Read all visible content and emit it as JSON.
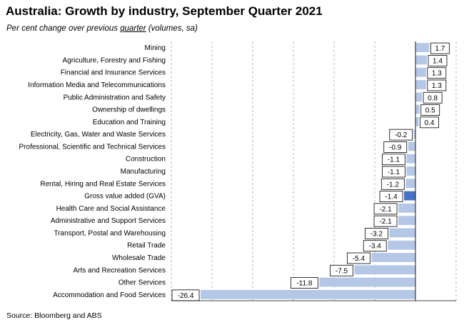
{
  "title": "Australia: Growth by industry, September Quarter 2021",
  "subtitle": {
    "before": "Per cent change over previous ",
    "underlined": "quarter",
    "after": " (volumes, sa)"
  },
  "source": "Source: Bloomberg and ABS",
  "colors": {
    "bar": "#b4c7e7",
    "highlight_bar": "#4472c4",
    "grid": "#a6a6a6",
    "axis": "#000000"
  },
  "chart_data": {
    "type": "bar",
    "orientation": "horizontal",
    "categories": [
      "Mining",
      "Agriculture, Forestry and Fishing",
      "Financial and Insurance Services",
      "Information Media and Telecommunications",
      "Public Administration and Safety",
      "Ownership of dwellings",
      "Education and Training",
      "Electricity, Gas, Water and Waste Services",
      "Professional, Scientific and Technical Services",
      "Construction",
      "Manufacturing",
      "Rental, Hiring and Real Estate Services",
      "Gross value added (GVA)",
      "Health Care and Social Assistance",
      "Administrative and Support Services",
      "Transport, Postal and Warehousing",
      "Retail Trade",
      "Wholesale Trade",
      "Arts and Recreation Services",
      "Other Services",
      "Accommodation and Food Services"
    ],
    "values": [
      1.7,
      1.4,
      1.3,
      1.3,
      0.8,
      0.5,
      0.4,
      -0.2,
      -0.9,
      -1.1,
      -1.1,
      -1.2,
      -1.4,
      -2.1,
      -2.1,
      -3.2,
      -3.4,
      -5.4,
      -7.5,
      -11.8,
      -26.4
    ],
    "value_labels": [
      "1.7",
      "1.4",
      "1.3",
      "1.3",
      "0.8",
      "0.5",
      "0.4",
      "-0.2",
      "-0.9",
      "-1.1",
      "-1.1",
      "-1.2",
      "-1.4",
      "-2.1",
      "-2.1",
      "-3.2",
      "-3.4",
      "-5.4",
      "-7.5",
      "-11.8",
      "-26.4"
    ],
    "highlight_category": "Gross value added (GVA)",
    "xlim": [
      -30,
      5
    ],
    "xticks": [
      "-30",
      "-25",
      "-20",
      "-15",
      "-10",
      "-5",
      "0",
      "5"
    ],
    "grid": "vertical dashed",
    "legend": "none"
  }
}
